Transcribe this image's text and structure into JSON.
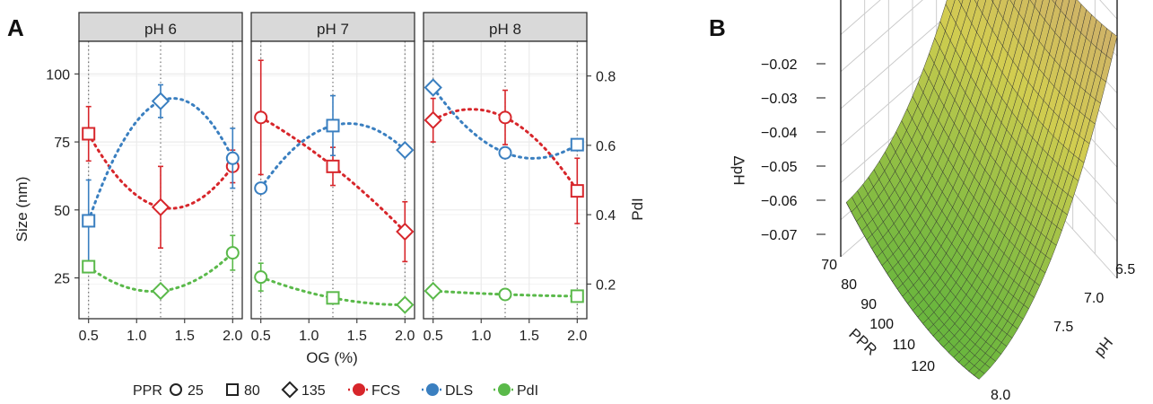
{
  "panel_labels": [
    "A",
    "B"
  ],
  "colors": {
    "FCS": "#d7262b",
    "DLS": "#3a7fc0",
    "PdI": "#5ab94a",
    "strip": "#d9d9d9",
    "grid": "#ebebeb"
  },
  "legend": {
    "ppr_title": "PPR",
    "shapes": [
      {
        "symbol": "circle",
        "label": "25"
      },
      {
        "symbol": "square",
        "label": "80"
      },
      {
        "symbol": "diamond",
        "label": "135"
      }
    ],
    "methods": [
      {
        "label": "FCS",
        "color": "#d7262b"
      },
      {
        "label": "DLS",
        "color": "#3a7fc0"
      },
      {
        "label": "PdI",
        "color": "#5ab94a"
      }
    ]
  },
  "chart_data": [
    {
      "type": "scatter",
      "panel": "A",
      "facets": [
        "pH 6",
        "pH 7",
        "pH 8"
      ],
      "xlabel": "OG (%)",
      "ylabel": "Size (nm)",
      "y2label": "PdI",
      "xlim": [
        0.4,
        2.1
      ],
      "ylim": [
        10,
        112
      ],
      "y2lim": [
        0.1,
        0.9
      ],
      "x_ticks": [
        "0.5",
        "1.0",
        "1.5",
        "2.0"
      ],
      "y_ticks": [
        "25",
        "50",
        "75",
        "100"
      ],
      "y2_ticks": [
        "0.2",
        "0.4",
        "0.6",
        "0.8"
      ],
      "grid": true,
      "vlines": [
        0.5,
        1.25,
        2.0
      ],
      "series": [
        {
          "name": "FCS",
          "axis": "left",
          "points": [
            {
              "facet": 0,
              "x": 0.5,
              "y": 78,
              "err": 10,
              "shape": "square"
            },
            {
              "facet": 0,
              "x": 1.25,
              "y": 51,
              "err": 15,
              "shape": "diamond"
            },
            {
              "facet": 0,
              "x": 2.0,
              "y": 66,
              "err": 6,
              "shape": "circle"
            },
            {
              "facet": 1,
              "x": 0.5,
              "y": 84,
              "err": 21,
              "shape": "circle"
            },
            {
              "facet": 1,
              "x": 1.25,
              "y": 66,
              "err": 7,
              "shape": "square"
            },
            {
              "facet": 1,
              "x": 2.0,
              "y": 42,
              "err": 11,
              "shape": "diamond"
            },
            {
              "facet": 2,
              "x": 0.5,
              "y": 83,
              "err": 8,
              "shape": "diamond"
            },
            {
              "facet": 2,
              "x": 1.25,
              "y": 84,
              "err": 10,
              "shape": "circle"
            },
            {
              "facet": 2,
              "x": 2.0,
              "y": 57,
              "err": 12,
              "shape": "square"
            }
          ]
        },
        {
          "name": "DLS",
          "axis": "left",
          "points": [
            {
              "facet": 0,
              "x": 0.5,
              "y": 46,
              "err": 15,
              "shape": "square"
            },
            {
              "facet": 0,
              "x": 1.25,
              "y": 90,
              "err": 6,
              "shape": "diamond"
            },
            {
              "facet": 0,
              "x": 2.0,
              "y": 69,
              "err": 11,
              "shape": "circle"
            },
            {
              "facet": 1,
              "x": 0.5,
              "y": 58,
              "err": 0,
              "shape": "circle"
            },
            {
              "facet": 1,
              "x": 1.25,
              "y": 81,
              "err": 11,
              "shape": "square"
            },
            {
              "facet": 1,
              "x": 2.0,
              "y": 72,
              "err": 2,
              "shape": "diamond"
            },
            {
              "facet": 2,
              "x": 0.5,
              "y": 95,
              "err": 0,
              "shape": "diamond"
            },
            {
              "facet": 2,
              "x": 1.25,
              "y": 71,
              "err": 2,
              "shape": "circle"
            },
            {
              "facet": 2,
              "x": 2.0,
              "y": 74,
              "err": 0,
              "shape": "square"
            }
          ]
        },
        {
          "name": "PdI",
          "axis": "right",
          "points": [
            {
              "facet": 0,
              "x": 0.5,
              "y": 0.25,
              "err": 0,
              "shape": "square"
            },
            {
              "facet": 0,
              "x": 1.25,
              "y": 0.18,
              "err": 0,
              "shape": "diamond"
            },
            {
              "facet": 0,
              "x": 2.0,
              "y": 0.29,
              "err": 0.05,
              "shape": "circle"
            },
            {
              "facet": 1,
              "x": 0.5,
              "y": 0.22,
              "err": 0.04,
              "shape": "circle"
            },
            {
              "facet": 1,
              "x": 1.25,
              "y": 0.16,
              "err": 0,
              "shape": "square"
            },
            {
              "facet": 1,
              "x": 2.0,
              "y": 0.14,
              "err": 0,
              "shape": "diamond"
            },
            {
              "facet": 2,
              "x": 0.5,
              "y": 0.18,
              "err": 0,
              "shape": "diamond"
            },
            {
              "facet": 2,
              "x": 1.25,
              "y": 0.17,
              "err": 0,
              "shape": "circle"
            },
            {
              "facet": 2,
              "x": 2.0,
              "y": 0.165,
              "err": 0,
              "shape": "square"
            }
          ]
        }
      ]
    },
    {
      "type": "surface",
      "panel": "B",
      "zlabel": "ΔpH",
      "xlabel": "PPR",
      "ylabel": "pH",
      "z_ticks": [
        "−0.02",
        "−0.03",
        "−0.04",
        "−0.05",
        "−0.06",
        "−0.07"
      ],
      "x_ticks": [
        "70",
        "80",
        "90",
        "100",
        "110",
        "120"
      ],
      "y_ticks": [
        "6.5",
        "7.0",
        "7.5",
        "8.0"
      ],
      "xlim": [
        65,
        125
      ],
      "ylim": [
        6.3,
        8.0
      ],
      "zlim": [
        -0.075,
        -0.015
      ],
      "colormap": "green (low ΔpH) to yellow to tan (high ΔpH)"
    }
  ]
}
